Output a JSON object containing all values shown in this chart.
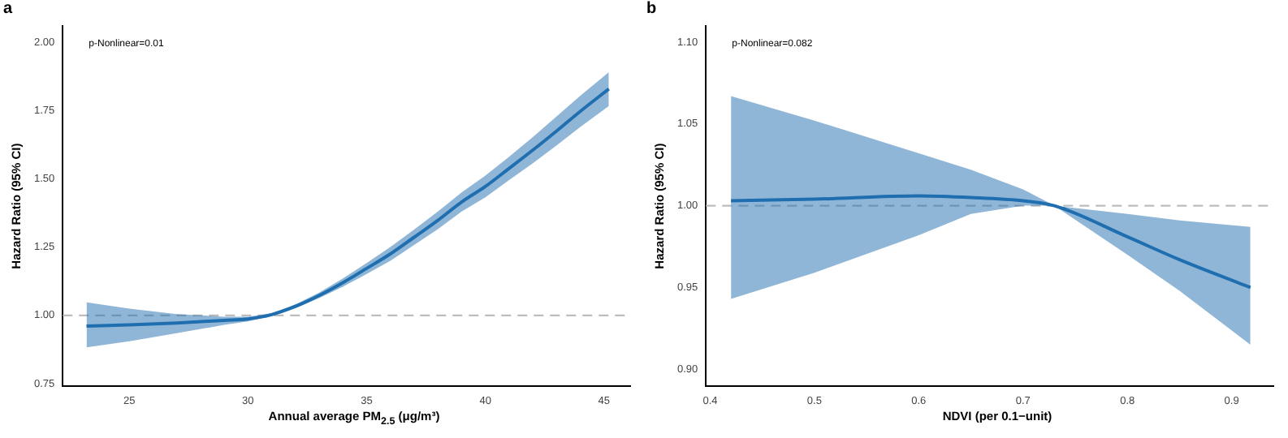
{
  "chart_data": [
    {
      "type": "line",
      "title": "a",
      "xlabel": "Annual average PM$_{2.5}$ (μg/m³)",
      "ylabel": "Hazard Ratio (95% CI)",
      "annotations": [
        "p-Nonlinear=0.01"
      ],
      "x": [
        23.2,
        25,
        27,
        29,
        30,
        31,
        32,
        33,
        34,
        35,
        36,
        37,
        38,
        39,
        40,
        41,
        42,
        43,
        44,
        45.2
      ],
      "series": [
        {
          "color": "#1f6eb0",
          "values": [
            0.961,
            0.965,
            0.972,
            0.982,
            0.987,
            1.003,
            1.033,
            1.073,
            1.12,
            1.172,
            1.225,
            1.286,
            1.348,
            1.415,
            1.472,
            1.538,
            1.605,
            1.675,
            1.747,
            1.829
          ],
          "lower": [
            0.883,
            0.905,
            0.935,
            0.965,
            0.978,
            0.998,
            1.026,
            1.063,
            1.105,
            1.152,
            1.2,
            1.258,
            1.316,
            1.38,
            1.432,
            1.495,
            1.557,
            1.622,
            1.69,
            1.766
          ],
          "upper": [
            1.048,
            1.025,
            1.005,
            0.995,
            0.995,
            1.008,
            1.04,
            1.083,
            1.135,
            1.192,
            1.25,
            1.314,
            1.38,
            1.45,
            1.512,
            1.581,
            1.653,
            1.728,
            1.804,
            1.89
          ]
        }
      ],
      "xlim": [
        22.2,
        46.1
      ],
      "xticks": [
        25,
        30,
        35,
        40,
        45
      ],
      "ylim": [
        0.74,
        2.06
      ],
      "yticks": [
        {
          "value": 0.75,
          "label": "0.75"
        },
        {
          "value": 1,
          "label": "1.00"
        },
        {
          "value": 1.25,
          "label": "1.25"
        },
        {
          "value": 1.5,
          "label": "1.50"
        },
        {
          "value": 1.75,
          "label": "1.75"
        },
        {
          "value": 2,
          "label": "2.00"
        }
      ],
      "ref_lines": [
        {
          "axis": "y",
          "value": 1,
          "color": "#bdbdbd",
          "line_style": "dashed"
        }
      ],
      "grid": false,
      "legend": false,
      "marker": "none",
      "line_style": "solid"
    },
    {
      "type": "line",
      "title": "b",
      "xlabel": "NDVI (per 0.1−unit)",
      "ylabel": "Hazard Ratio (95% CI)",
      "annotations": [
        "p-Nonlinear=0.082"
      ],
      "x": [
        0.42,
        0.5,
        0.6,
        0.65,
        0.7,
        0.73,
        0.8,
        0.85,
        0.918
      ],
      "series": [
        {
          "color": "#1f6eb0",
          "values": [
            1.003,
            1.004,
            1.006,
            1.005,
            1.003,
            1.0,
            0.981,
            0.967,
            0.95
          ],
          "lower": [
            0.943,
            0.959,
            0.982,
            0.995,
            1.0,
            1.0,
            0.97,
            0.948,
            0.915
          ],
          "upper": [
            1.067,
            1.052,
            1.032,
            1.022,
            1.01,
            1.0,
            0.995,
            0.991,
            0.987
          ]
        }
      ],
      "xlim": [
        0.396,
        0.94
      ],
      "xticks": [
        0.4,
        0.5,
        0.6,
        0.7,
        0.8,
        0.9
      ],
      "ylim": [
        0.8895,
        1.11
      ],
      "yticks": [
        {
          "value": 0.9,
          "label": "0.90"
        },
        {
          "value": 0.95,
          "label": "0.95"
        },
        {
          "value": 1,
          "label": "1.00"
        },
        {
          "value": 1.05,
          "label": "1.05"
        },
        {
          "value": 1.1,
          "label": "1.10"
        }
      ],
      "ref_lines": [
        {
          "axis": "y",
          "value": 1,
          "color": "#bdbdbd",
          "line_style": "dashed"
        }
      ],
      "grid": false,
      "legend": false,
      "marker": "none",
      "line_style": "solid"
    }
  ]
}
